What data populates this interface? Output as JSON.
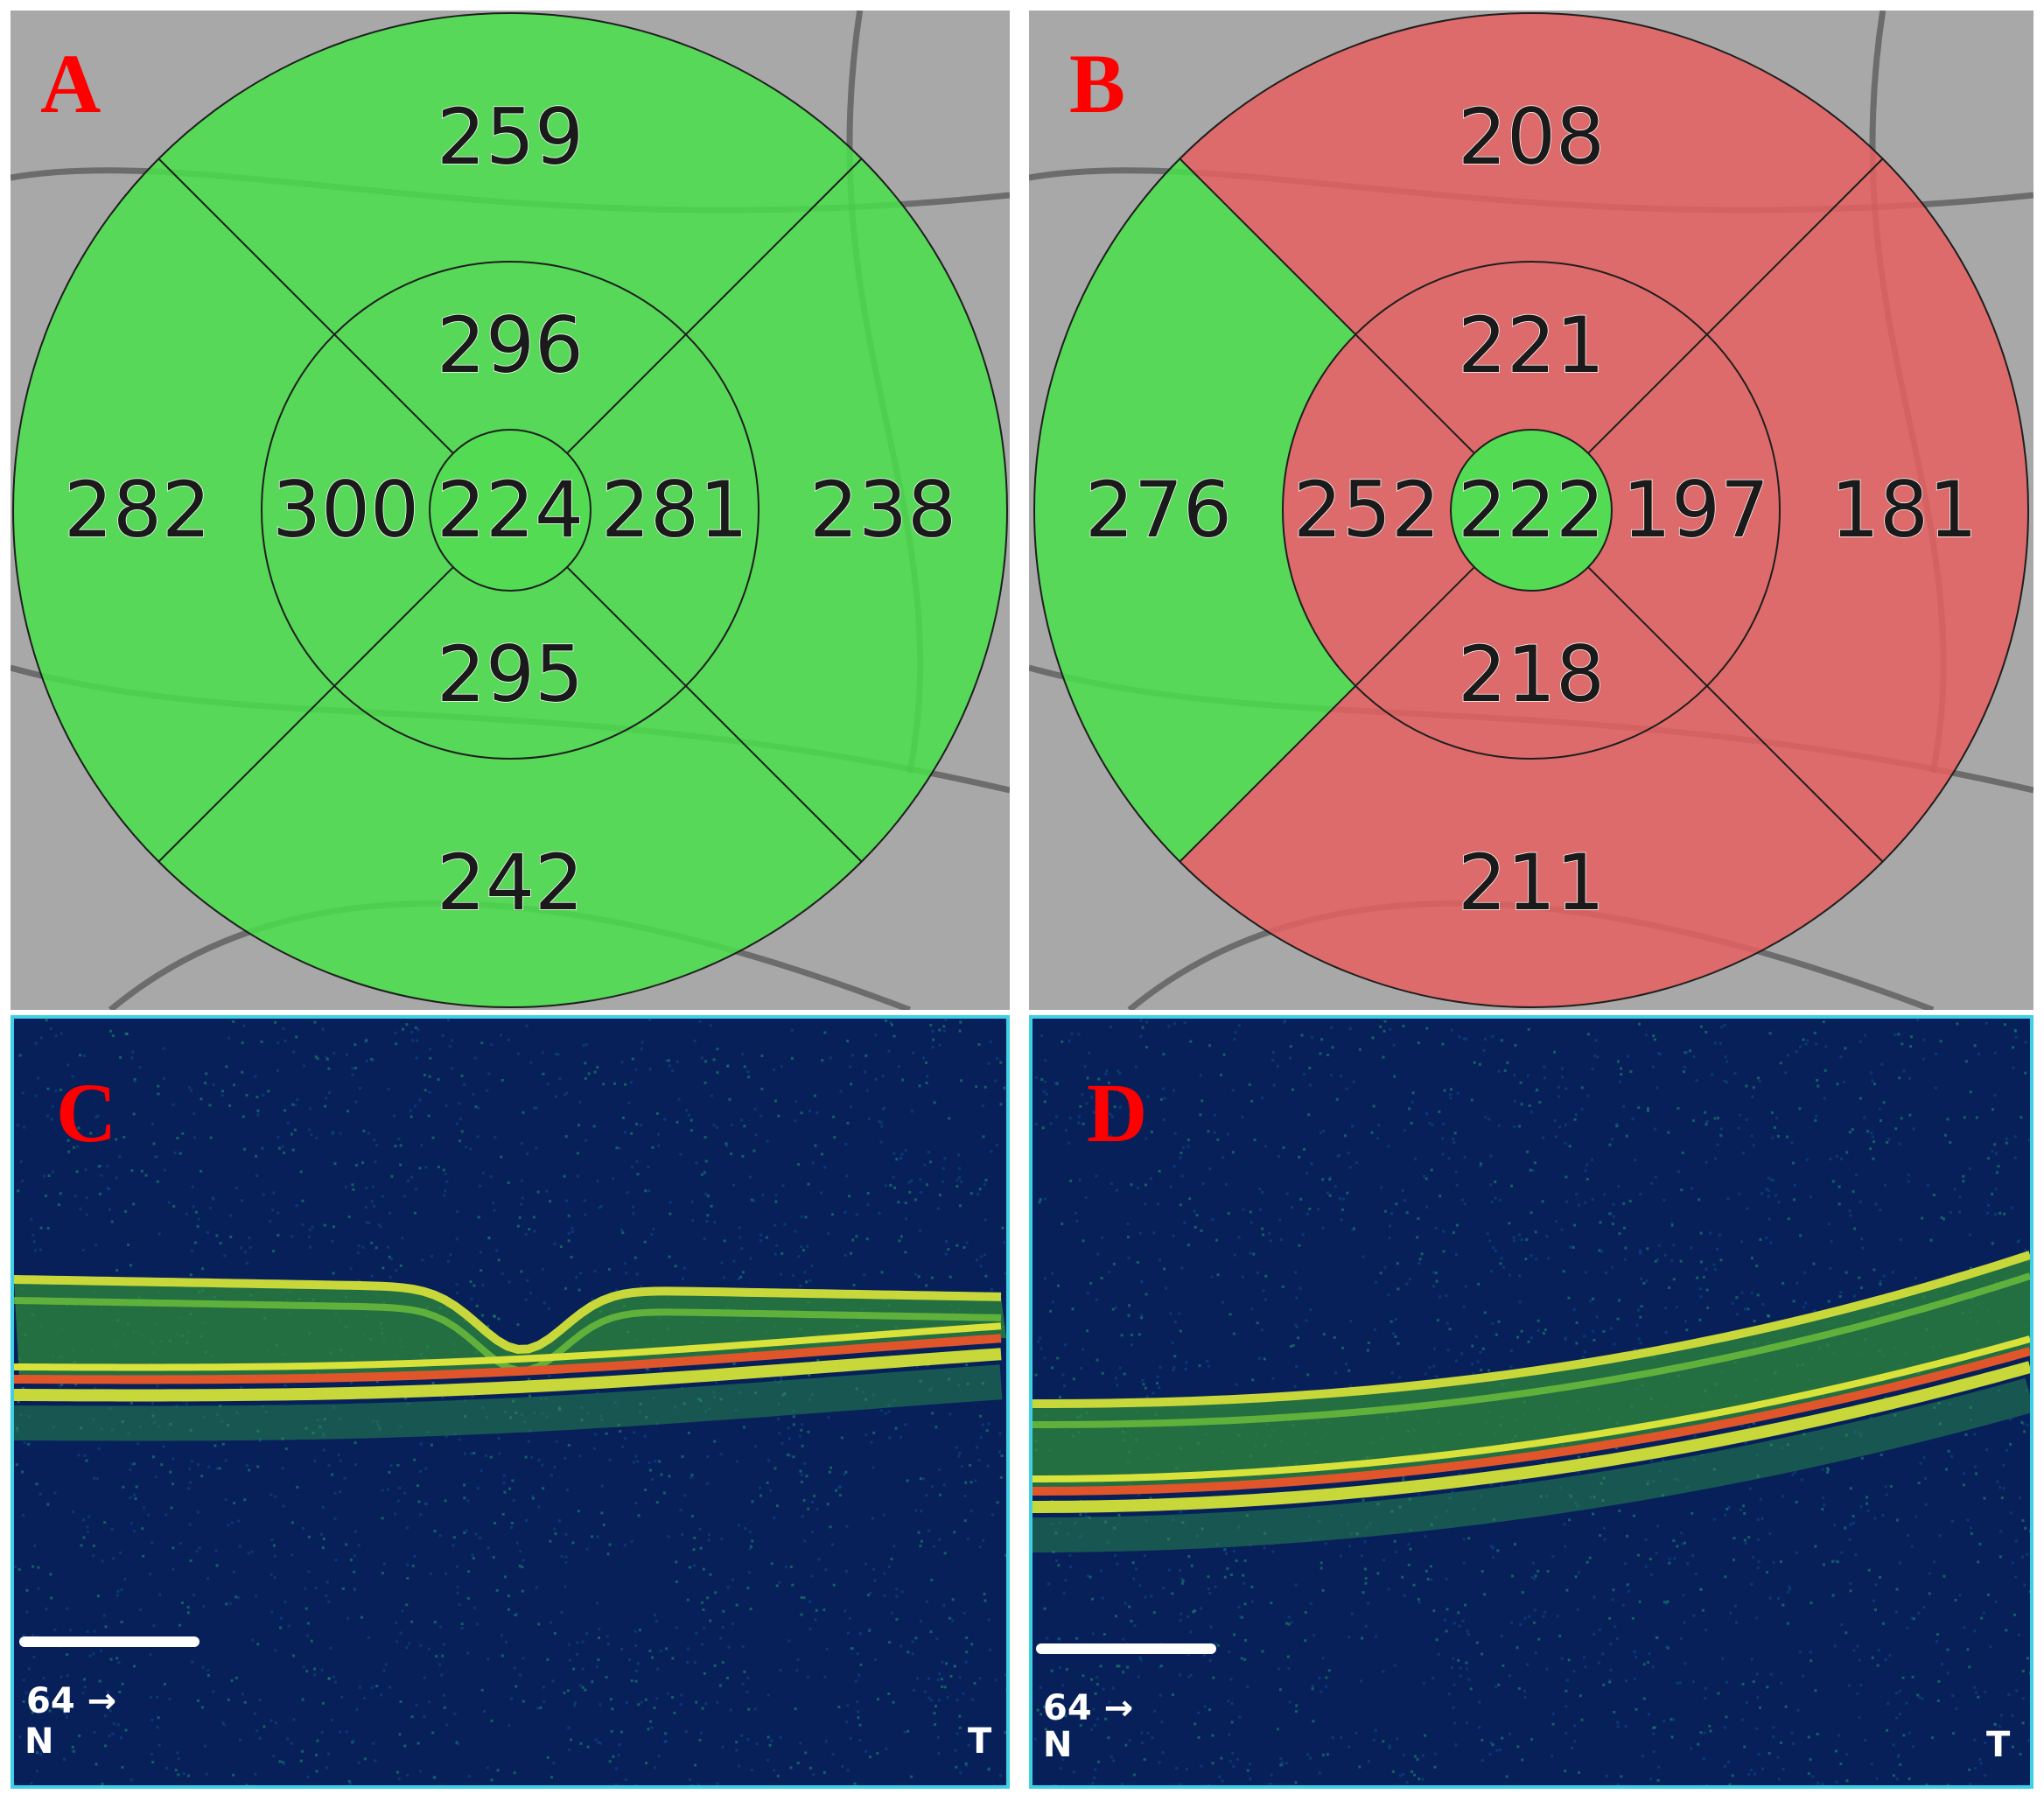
{
  "panels": {
    "A": {
      "letter": "A",
      "fill_colors": {
        "normal": "#49e04a"
      },
      "values": {
        "center": "224",
        "inner_superior": "296",
        "inner_nasal": "300",
        "inner_temporal": "281",
        "inner_inferior": "295",
        "outer_superior": "259",
        "outer_nasal": "282",
        "outer_temporal": "238",
        "outer_inferior": "242"
      },
      "sector_status": {
        "center": "normal",
        "inner_superior": "normal",
        "inner_nasal": "normal",
        "inner_temporal": "normal",
        "inner_inferior": "normal",
        "outer_superior": "normal",
        "outer_nasal": "normal",
        "outer_temporal": "normal",
        "outer_inferior": "normal"
      }
    },
    "B": {
      "letter": "B",
      "fill_colors": {
        "normal": "#49e04a",
        "thin": "#e86060"
      },
      "values": {
        "center": "222",
        "inner_superior": "221",
        "inner_nasal": "252",
        "inner_temporal": "197",
        "inner_inferior": "218",
        "outer_superior": "208",
        "outer_nasal": "276",
        "outer_temporal": "181",
        "outer_inferior": "211"
      },
      "sector_status": {
        "center": "normal",
        "inner_superior": "thin",
        "inner_nasal": "thin",
        "inner_temporal": "thin",
        "inner_inferior": "thin",
        "outer_superior": "thin",
        "outer_nasal": "normal",
        "outer_temporal": "thin",
        "outer_inferior": "thin"
      }
    },
    "C": {
      "letter": "C",
      "scan_label": "64",
      "left_label": "N",
      "right_label": "T"
    },
    "D": {
      "letter": "D",
      "scan_label": "64",
      "left_label": "N",
      "right_label": "T"
    }
  },
  "colors": {
    "oct_border": "#3fd0e6",
    "letter": "#ff0000"
  }
}
